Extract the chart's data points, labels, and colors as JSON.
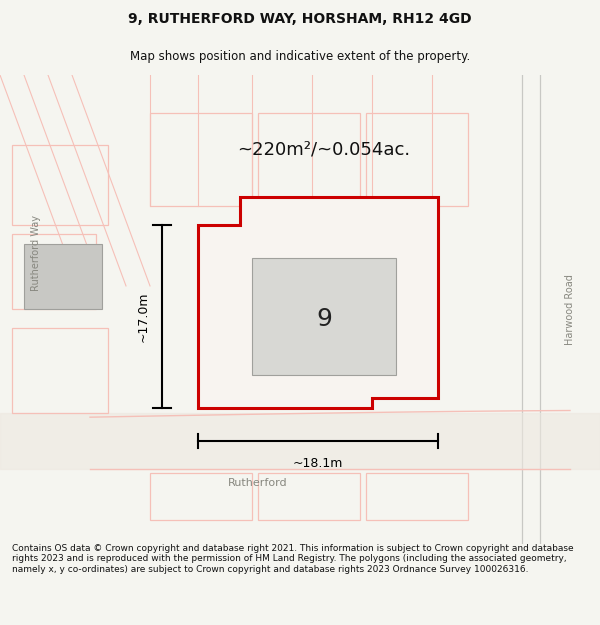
{
  "title_line1": "9, RUTHERFORD WAY, HORSHAM, RH12 4GD",
  "title_line2": "Map shows position and indicative extent of the property.",
  "area_text": "~220m²/~0.054ac.",
  "width_label": "~18.1m",
  "height_label": "~17.0m",
  "plot_number": "9",
  "footer_text": "Contains OS data © Crown copyright and database right 2021. This information is subject to Crown copyright and database rights 2023 and is reproduced with the permission of HM Land Registry. The polygons (including the associated geometry, namely x, y co-ordinates) are subject to Crown copyright and database rights 2023 Ordnance Survey 100026316.",
  "bg_color": "#f5f5f0",
  "map_bg": "#ffffff",
  "road_color_light": "#f5c0b8",
  "road_color_dark": "#d0d0cc",
  "property_outline_color": "#cc0000",
  "property_fill": "#f8f4f0",
  "building_fill": "#d8d8d4",
  "annotation_color": "#000000",
  "road_label": "Rutherford",
  "road_label2": "Harwood Road",
  "road_label3": "Rutherford Way"
}
